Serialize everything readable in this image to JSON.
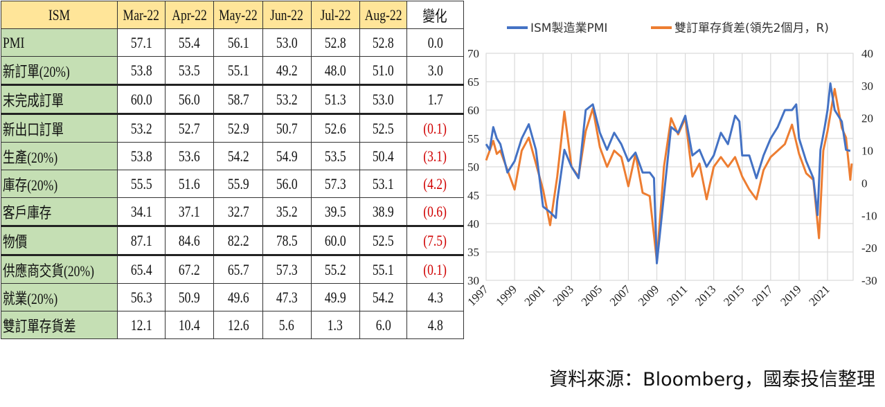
{
  "table": {
    "header": [
      "ISM",
      "Mar-22",
      "Apr-22",
      "May-22",
      "Jun-22",
      "Jul-22",
      "Aug-22",
      "變化"
    ],
    "rows": [
      {
        "label": "PMI",
        "values": [
          "57.1",
          "55.4",
          "56.1",
          "53.0",
          "52.8",
          "52.8"
        ],
        "change": "0.0",
        "negative": false
      },
      {
        "label": "新訂單(20%)",
        "values": [
          "53.8",
          "53.5",
          "55.1",
          "49.2",
          "48.0",
          "51.0"
        ],
        "change": "3.0",
        "negative": false
      },
      {
        "label": "末完成訂單",
        "values": [
          "60.0",
          "56.0",
          "58.7",
          "53.2",
          "51.3",
          "53.0"
        ],
        "change": "1.7",
        "negative": false
      },
      {
        "label": "新出口訂單",
        "values": [
          "53.2",
          "52.7",
          "52.9",
          "50.7",
          "52.6",
          "52.5"
        ],
        "change": "(0.1)",
        "negative": true
      },
      {
        "label": "生產(20%)",
        "values": [
          "53.8",
          "53.6",
          "54.2",
          "54.9",
          "53.5",
          "50.4"
        ],
        "change": "(3.1)",
        "negative": true
      },
      {
        "label": "庫存(20%)",
        "values": [
          "55.5",
          "51.6",
          "55.9",
          "56.0",
          "57.3",
          "53.1"
        ],
        "change": "(4.2)",
        "negative": true
      },
      {
        "label": "客戶庫存",
        "values": [
          "34.1",
          "37.1",
          "32.7",
          "35.2",
          "39.5",
          "38.9"
        ],
        "change": "(0.6)",
        "negative": true
      },
      {
        "label": "物價",
        "values": [
          "87.1",
          "84.6",
          "82.2",
          "78.5",
          "60.0",
          "52.5"
        ],
        "change": "(7.5)",
        "negative": true
      },
      {
        "label": "供應商交貨(20%)",
        "values": [
          "65.4",
          "67.2",
          "65.7",
          "57.3",
          "55.2",
          "55.1"
        ],
        "change": "(0.1)",
        "negative": true
      },
      {
        "label": "就業(20%)",
        "values": [
          "56.3",
          "50.9",
          "49.6",
          "47.3",
          "49.9",
          "54.2"
        ],
        "change": "4.3",
        "negative": false
      },
      {
        "label": "雙訂單存貨差",
        "values": [
          "12.1",
          "10.4",
          "12.6",
          "5.6",
          "1.3",
          "6.0"
        ],
        "change": "4.8",
        "negative": false
      }
    ]
  },
  "chart_data": {
    "type": "line",
    "title": "",
    "legend_position": "top",
    "xlabel": "",
    "ylabel": "",
    "x_ticks": [
      "1997",
      "1999",
      "2001",
      "2003",
      "2005",
      "2007",
      "2009",
      "2011",
      "2013",
      "2015",
      "2017",
      "2019",
      "2021"
    ],
    "xlim": [
      1997,
      2022.8
    ],
    "y_left": {
      "range": [
        30,
        70
      ],
      "ticks": [
        "30",
        "35",
        "40",
        "45",
        "50",
        "55",
        "60",
        "65",
        "70"
      ]
    },
    "y_right": {
      "range": [
        -30,
        40
      ],
      "ticks": [
        "-30",
        "-20",
        "-10",
        "0",
        "10",
        "20",
        "30",
        "40"
      ]
    },
    "grid": true,
    "series": [
      {
        "name": "ISM製造業PMI",
        "axis": "left",
        "color": "#4472c4",
        "x": [
          1997,
          1997.25,
          1997.5,
          1997.75,
          1998,
          1998.5,
          1999,
          1999.5,
          2000,
          2000.5,
          2001,
          2001.5,
          2001.9,
          2002,
          2002.5,
          2003,
          2003.5,
          2004,
          2004.5,
          2005,
          2005.5,
          2006,
          2006.5,
          2007,
          2007.5,
          2008,
          2008.5,
          2008.8,
          2009,
          2009.5,
          2010,
          2010.5,
          2011,
          2011.5,
          2012,
          2012.5,
          2013,
          2013.5,
          2014,
          2014.5,
          2014.8,
          2015,
          2015.5,
          2016,
          2016.5,
          2017,
          2017.5,
          2018,
          2018.5,
          2018.8,
          2019,
          2019.5,
          2020,
          2020.3,
          2020.5,
          2020.8,
          2021,
          2021.2,
          2021.5,
          2022,
          2022.3,
          2022.6
        ],
        "values": [
          54,
          53,
          57,
          55,
          54,
          49,
          51,
          55,
          57.5,
          53,
          43,
          42,
          41,
          44,
          53,
          50,
          48,
          60,
          61,
          56,
          53,
          56,
          54,
          51,
          52.5,
          49,
          49,
          48,
          33,
          45,
          57,
          56,
          59,
          52,
          53,
          50,
          52,
          56,
          54,
          59,
          58,
          52,
          52,
          48,
          52,
          55,
          57,
          60,
          60,
          61,
          55,
          51,
          48,
          41.5,
          53,
          57,
          60,
          64.7,
          60,
          58,
          53,
          52.8
        ]
      },
      {
        "name": "雙訂單存貨差(領先2個月，R)",
        "axis": "right",
        "color": "#ed7d31",
        "x": [
          1997,
          1997.25,
          1997.5,
          1997.75,
          1998,
          1998.5,
          1999,
          1999.5,
          2000,
          2000.5,
          2001,
          2001.5,
          2002,
          2002.5,
          2003,
          2003.5,
          2004,
          2004.5,
          2005,
          2005.5,
          2006,
          2006.5,
          2007,
          2007.5,
          2008,
          2008.5,
          2009,
          2009.5,
          2010,
          2010.5,
          2011,
          2011.5,
          2012,
          2012.5,
          2013,
          2013.5,
          2014,
          2014.5,
          2015,
          2015.5,
          2016,
          2016.5,
          2017,
          2017.5,
          2018,
          2018.5,
          2019,
          2019.5,
          2020,
          2020.4,
          2020.7,
          2021,
          2021.5,
          2022,
          2022.3,
          2022.6,
          2022.7
        ],
        "values": [
          7,
          10,
          13,
          9,
          10,
          4,
          -2,
          10,
          14,
          6,
          -2,
          -13,
          2,
          22,
          5,
          2,
          16,
          23,
          11,
          5,
          10,
          8,
          -1,
          9,
          -3,
          -4,
          -24,
          5,
          20,
          15,
          20,
          2,
          6,
          -5,
          5,
          8,
          5,
          8,
          2,
          -2,
          -5,
          4,
          8,
          10,
          12,
          18,
          9,
          3,
          1,
          -17,
          10,
          16,
          29,
          17,
          14,
          1,
          6
        ]
      }
    ]
  },
  "footer": {
    "source": "資料來源：Bloomberg，國泰投信整理"
  }
}
